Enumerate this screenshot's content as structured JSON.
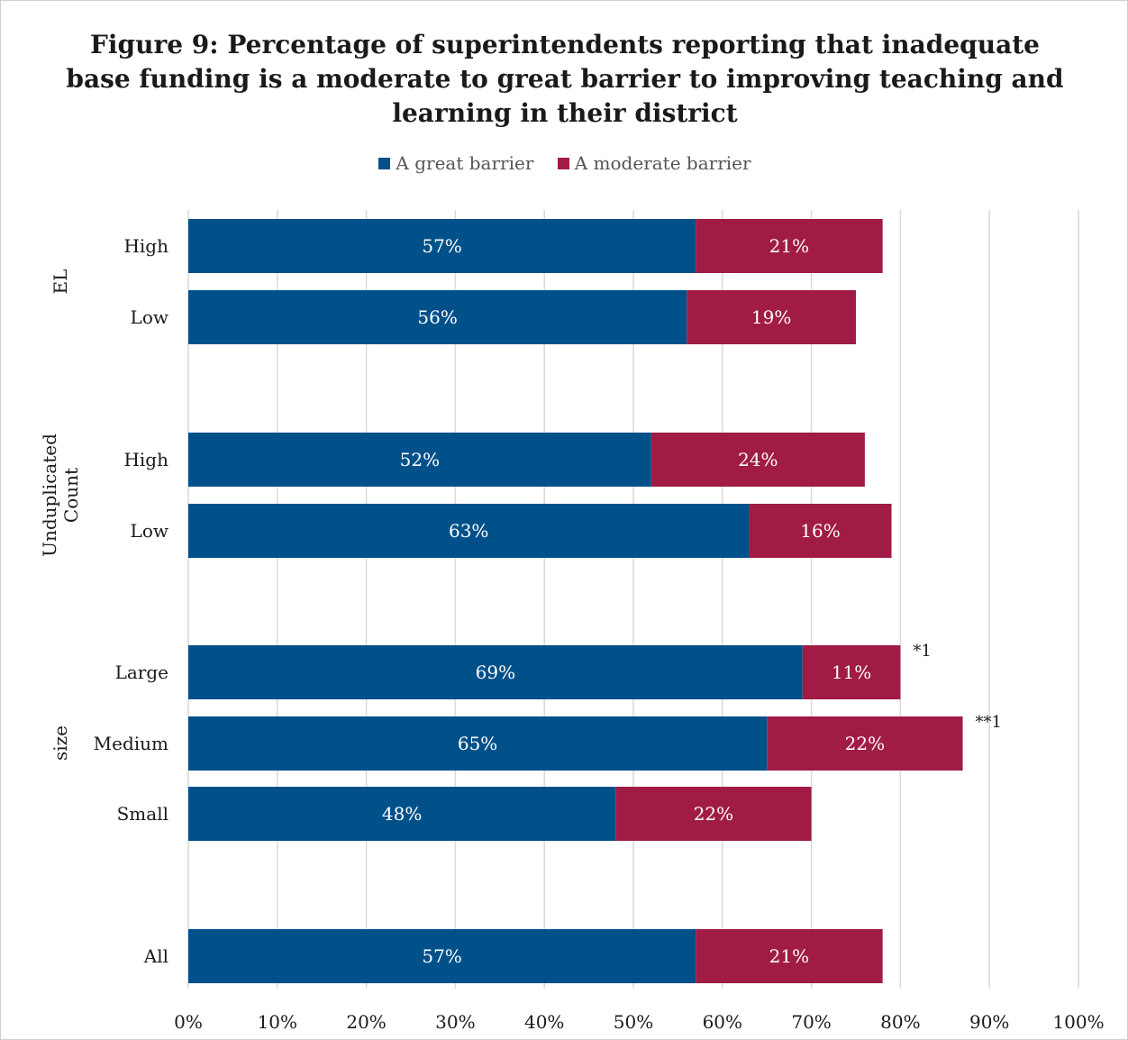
{
  "chart_data": {
    "type": "bar",
    "orientation": "horizontal",
    "stacked": true,
    "title": "Figure 9: Percentage of superintendents reporting that inadequate base funding is a moderate to great barrier to improving teaching and learning in their district",
    "legend_position": "top",
    "grid": true,
    "xlim": [
      0,
      100
    ],
    "x_ticks": [
      "0%",
      "10%",
      "20%",
      "30%",
      "40%",
      "50%",
      "60%",
      "70%",
      "80%",
      "90%",
      "100%"
    ],
    "groups": [
      {
        "label": "EL",
        "categories": [
          "High",
          "Low"
        ]
      },
      {
        "label": "Unduplicated Count",
        "categories": [
          "High",
          "Low"
        ]
      },
      {
        "label": "size",
        "categories": [
          "Large",
          "Medium",
          "Small"
        ]
      },
      {
        "label": "",
        "categories": [
          "All"
        ]
      }
    ],
    "categories": [
      "High",
      "Low",
      "High",
      "Low",
      "Large",
      "Medium",
      "Small",
      "All"
    ],
    "series": [
      {
        "name": "A great barrier",
        "color": "#00508a",
        "values": [
          57,
          56,
          52,
          63,
          69,
          65,
          48,
          57
        ],
        "labels": [
          "57%",
          "56%",
          "52%",
          "63%",
          "69%",
          "65%",
          "48%",
          "57%"
        ]
      },
      {
        "name": "A moderate barrier",
        "color": "#a01c44",
        "values": [
          21,
          19,
          24,
          16,
          11,
          22,
          22,
          21
        ],
        "labels": [
          "21%",
          "19%",
          "24%",
          "16%",
          "11%",
          "22%",
          "22%",
          "21%"
        ]
      }
    ],
    "annotations": [
      {
        "category_index": 4,
        "text": "*1"
      },
      {
        "category_index": 5,
        "text": "**1"
      }
    ]
  }
}
